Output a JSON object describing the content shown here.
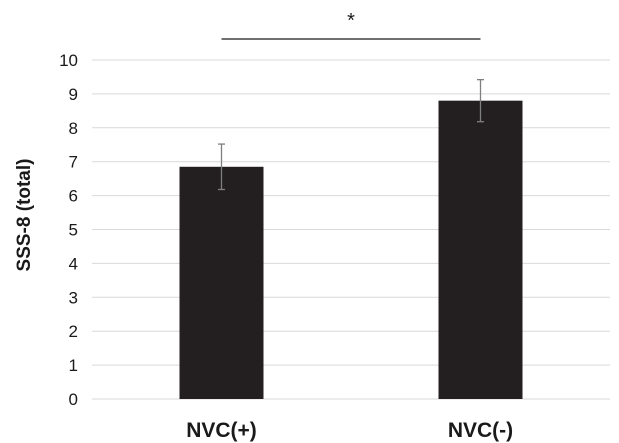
{
  "chart_data": {
    "type": "bar",
    "title": "",
    "xlabel": "",
    "ylabel": "SSS-8 (total)",
    "categories": [
      "NVC(+)",
      "NVC(-)"
    ],
    "values": [
      6.85,
      8.8
    ],
    "error_bars": [
      0.67,
      0.62
    ],
    "ylim": [
      0,
      10
    ],
    "yticks": [
      "0",
      "1",
      "2",
      "3",
      "4",
      "5",
      "6",
      "7",
      "8",
      "9",
      "10"
    ],
    "grid": true,
    "legend": "none",
    "significance": {
      "label": "*",
      "between": [
        "NVC(+)",
        "NVC(-)"
      ]
    },
    "colors": {
      "bar": "#231f20",
      "grid": "#d9d9d9",
      "error_bar": "#7f7f7f",
      "text": "#1a1a1a"
    }
  }
}
